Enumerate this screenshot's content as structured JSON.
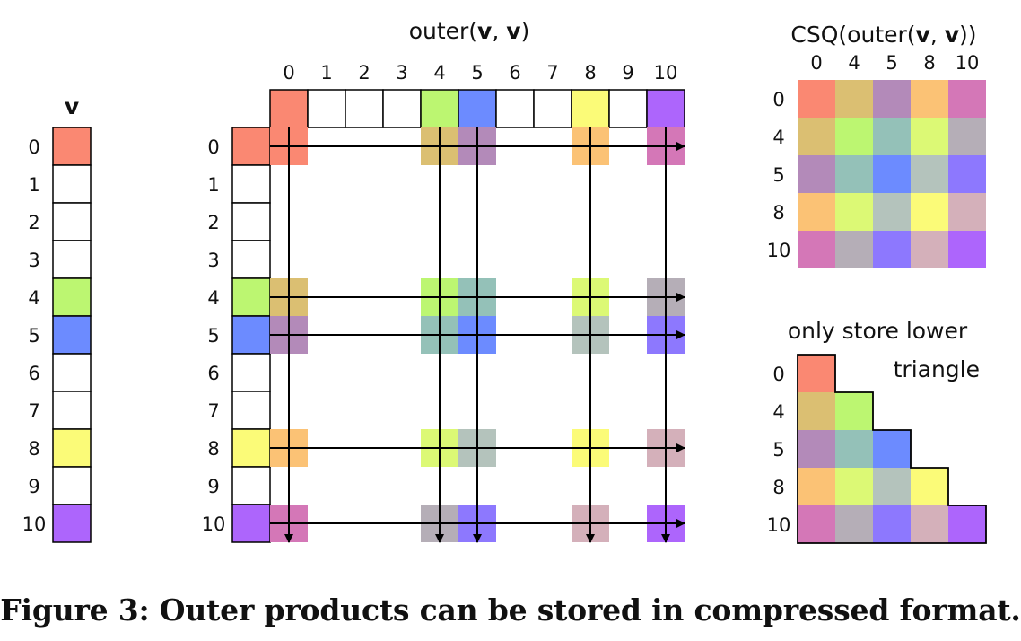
{
  "colors": {
    "c0": "#fa8872",
    "c4": "#bcf671",
    "c5": "#6c8bff",
    "c8": "#fbfb78",
    "c10": "#ad65fc",
    "arrow": "#000000",
    "border": "#000000"
  },
  "indices": [
    "0",
    "1",
    "2",
    "3",
    "4",
    "5",
    "6",
    "7",
    "8",
    "9",
    "10"
  ],
  "nonzero_indices": [
    "0",
    "4",
    "5",
    "8",
    "10"
  ],
  "vector": {
    "title_var": "v"
  },
  "outer": {
    "title_prefix": "outer(",
    "title_var1": "v",
    "title_sep": ", ",
    "title_var2": "v",
    "title_suffix": ")"
  },
  "csq": {
    "title_prefix": "CSQ(outer(",
    "title_var1": "v",
    "title_sep": ", ",
    "title_var2": "v",
    "title_suffix": "))"
  },
  "triangle": {
    "title_line1": "only store lower",
    "title_line2": "triangle"
  },
  "caption": "Figure 3: Outer products can be stored in compressed format."
}
